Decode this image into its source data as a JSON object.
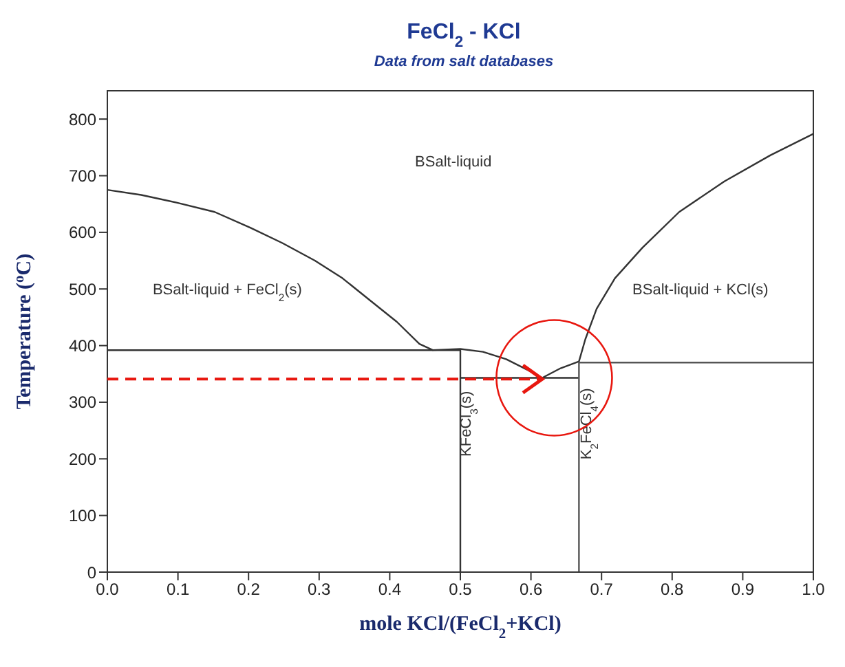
{
  "chart_data": {
    "type": "line",
    "title": "FeCl$_{2}$ - KCl",
    "subtitle": "Data from salt databases",
    "xlabel": "mole KCl/(FeCl$_{2}$+KCl)",
    "ylabel": "Temperature ($^{o}$C)",
    "xlim": [
      0,
      1
    ],
    "ylim": [
      0,
      850
    ],
    "xticks": [
      {
        "value": 0,
        "label": "0.0"
      },
      0.1,
      0.2,
      0.3,
      0.4,
      0.5,
      0.6,
      0.7,
      0.8,
      0.9,
      {
        "value": 1,
        "label": "1.0"
      }
    ],
    "yticks": [
      0,
      100,
      200,
      300,
      400,
      500,
      600,
      700,
      800
    ],
    "grid": false,
    "legend": false,
    "marker": "none",
    "series": [
      {
        "color": "#333333",
        "x": [
          0,
          0.048,
          0.1,
          0.152,
          0.203,
          0.248,
          0.294,
          0.333,
          0.372,
          0.41,
          0.442,
          0.461,
          0.5,
          0.532,
          0.565,
          0.597,
          0.616,
          0.642,
          0.668,
          0.677,
          0.693,
          0.719,
          0.758,
          0.81,
          0.874,
          0.939,
          1
        ],
        "values": [
          675,
          666,
          652,
          636,
          608,
          581,
          550,
          519,
          480,
          442,
          403,
          392,
          394,
          389,
          376,
          356,
          343,
          360,
          372,
          411,
          465,
          519,
          573,
          636,
          690,
          736,
          774
        ]
      },
      {
        "color": "#333333",
        "x": [
          0,
          0.5,
          0.5
        ],
        "values": [
          392,
          392,
          0
        ]
      },
      {
        "color": "#333333",
        "x": [
          0.5,
          0.668
        ],
        "values": [
          343,
          343
        ]
      },
      {
        "color": "#555555",
        "x": [
          0.668,
          0.668,
          1
        ],
        "values": [
          0,
          370,
          370
        ]
      }
    ],
    "ref_lines": [
      {
        "axis": "y",
        "value": 341,
        "color": "#e8170f",
        "line_style": "dashed"
      }
    ],
    "annotations": [
      "BSalt-liquid",
      "BSalt-liquid + FeCl$_{2}$(s)",
      "BSalt-liquid + KCl(s)",
      "KFeCl$_{3}$(s)",
      "K$_{2}$FeCl$_{4}$(s)"
    ]
  }
}
